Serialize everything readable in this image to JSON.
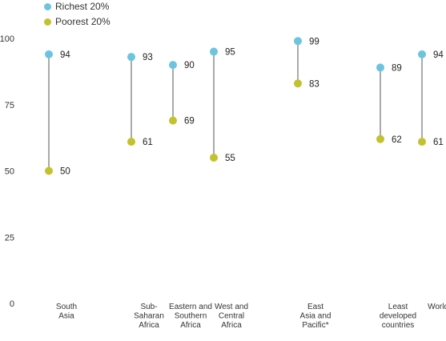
{
  "colors": {
    "richest": "#6cc4df",
    "poorest": "#c3c22e",
    "stem": "#555555"
  },
  "legend": [
    {
      "label": "Richest 20%",
      "color": "#6cc4df"
    },
    {
      "label": "Poorest 20%",
      "color": "#c3c22e"
    }
  ],
  "chart_data": {
    "type": "dumbbell",
    "ylim": [
      0,
      100
    ],
    "yticks": [
      "0",
      "25",
      "50",
      "75",
      "100"
    ],
    "grid": false,
    "legend_placement": "top-left",
    "categories": [
      {
        "lines": [
          "South",
          "Asia"
        ],
        "richest": 94,
        "poorest": 50
      },
      {
        "lines": [
          "Sub-",
          "Saharan",
          "Africa"
        ],
        "richest": 93,
        "poorest": 61
      },
      {
        "lines": [
          "Eastern and",
          "Southern",
          "Africa"
        ],
        "richest": 90,
        "poorest": 69
      },
      {
        "lines": [
          "West and",
          "Central",
          "Africa"
        ],
        "richest": 95,
        "poorest": 55
      },
      {
        "lines": [
          "East",
          "Asia and",
          "Pacific*"
        ],
        "richest": 99,
        "poorest": 83
      },
      {
        "lines": [
          "Least",
          "developed",
          "countries"
        ],
        "richest": 89,
        "poorest": 62
      },
      {
        "lines": [
          "World*"
        ],
        "richest": 94,
        "poorest": 61
      }
    ],
    "series": [
      {
        "name": "Richest 20%",
        "key": "richest"
      },
      {
        "name": "Poorest 20%",
        "key": "poorest"
      }
    ]
  }
}
